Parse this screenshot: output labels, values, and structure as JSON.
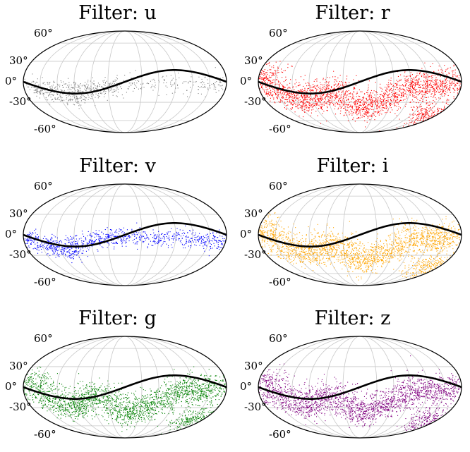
{
  "chart_data": [
    {
      "type": "scatter",
      "projection": "mollweide",
      "title": "Filter: u",
      "filter": "u",
      "color": "#808080",
      "density": "sparse",
      "ytick_labels": [
        "60°",
        "30°",
        "0°",
        "-30°",
        "-60°"
      ],
      "grid": true,
      "points": [
        [
          -170,
          -5
        ],
        [
          -160,
          -12
        ],
        [
          -150,
          -8
        ],
        [
          -140,
          -18
        ],
        [
          -130,
          -10
        ],
        [
          -120,
          -22
        ],
        [
          -110,
          -15
        ],
        [
          -100,
          -5
        ],
        [
          -95,
          -25
        ],
        [
          -90,
          -12
        ],
        [
          -80,
          -20
        ],
        [
          -70,
          -8
        ],
        [
          -60,
          -15
        ],
        [
          -50,
          -5
        ],
        [
          -40,
          -10
        ],
        [
          -30,
          -3
        ],
        [
          -20,
          -8
        ],
        [
          10,
          -2
        ],
        [
          40,
          -3
        ],
        [
          80,
          -2
        ],
        [
          120,
          -1
        ],
        [
          150,
          -3
        ],
        [
          170,
          -2
        ]
      ],
      "curve": {
        "name": "",
        "color": "#000000",
        "points": [
          [
            -180,
            0
          ],
          [
            -135,
            -12
          ],
          [
            -90,
            -17
          ],
          [
            -45,
            -11
          ],
          [
            0,
            0
          ],
          [
            45,
            11
          ],
          [
            90,
            17
          ],
          [
            135,
            12
          ],
          [
            180,
            0
          ]
        ]
      }
    },
    {
      "type": "scatter",
      "projection": "mollweide",
      "title": "Filter: r",
      "filter": "r",
      "color": "#ff0000",
      "density": "dense",
      "ytick_labels": [
        "60°",
        "30°",
        "0°",
        "-30°",
        "-60°"
      ],
      "grid": true,
      "points": [
        [
          -170,
          0
        ],
        [
          -150,
          -10
        ],
        [
          -130,
          -20
        ],
        [
          -110,
          -30
        ],
        [
          -90,
          -25
        ],
        [
          -70,
          -15
        ],
        [
          -50,
          -10
        ],
        [
          -30,
          -20
        ],
        [
          -10,
          -35
        ],
        [
          10,
          -40
        ],
        [
          30,
          -30
        ],
        [
          50,
          -25
        ],
        [
          70,
          -15
        ],
        [
          90,
          -5
        ],
        [
          110,
          0
        ],
        [
          130,
          -10
        ],
        [
          150,
          -5
        ],
        [
          170,
          5
        ],
        [
          -170,
          10
        ],
        [
          170,
          -50
        ],
        [
          140,
          -45
        ]
      ],
      "curve": {
        "name": "",
        "color": "#000000",
        "points": [
          [
            -180,
            0
          ],
          [
            -135,
            -12
          ],
          [
            -90,
            -17
          ],
          [
            -45,
            -11
          ],
          [
            0,
            0
          ],
          [
            45,
            11
          ],
          [
            90,
            17
          ],
          [
            135,
            12
          ],
          [
            180,
            0
          ]
        ]
      }
    },
    {
      "type": "scatter",
      "projection": "mollweide",
      "title": "Filter: v",
      "filter": "v",
      "color": "#0000ff",
      "density": "medium",
      "ytick_labels": [
        "60°",
        "30°",
        "0°",
        "-30°",
        "-60°"
      ],
      "grid": true,
      "points": [
        [
          -170,
          -3
        ],
        [
          -155,
          -10
        ],
        [
          -140,
          -15
        ],
        [
          -125,
          -20
        ],
        [
          -110,
          -25
        ],
        [
          -95,
          -18
        ],
        [
          -80,
          -12
        ],
        [
          -60,
          -8
        ],
        [
          -40,
          -5
        ],
        [
          -20,
          -3
        ],
        [
          0,
          -2
        ],
        [
          30,
          -2
        ],
        [
          60,
          -5
        ],
        [
          90,
          -3
        ],
        [
          120,
          -8
        ],
        [
          150,
          -5
        ],
        [
          170,
          -10
        ]
      ],
      "curve": {
        "name": "",
        "color": "#000000",
        "points": [
          [
            -180,
            0
          ],
          [
            -135,
            -12
          ],
          [
            -90,
            -17
          ],
          [
            -45,
            -11
          ],
          [
            0,
            0
          ],
          [
            45,
            11
          ],
          [
            90,
            17
          ],
          [
            135,
            12
          ],
          [
            180,
            0
          ]
        ]
      }
    },
    {
      "type": "scatter",
      "projection": "mollweide",
      "title": "Filter: i",
      "filter": "i",
      "color": "#ffa500",
      "density": "dense",
      "ytick_labels": [
        "60°",
        "30°",
        "0°",
        "-30°",
        "-60°"
      ],
      "grid": true,
      "points": [
        [
          -170,
          0
        ],
        [
          -150,
          -10
        ],
        [
          -130,
          -20
        ],
        [
          -110,
          -30
        ],
        [
          -90,
          -25
        ],
        [
          -70,
          -15
        ],
        [
          -50,
          -10
        ],
        [
          -30,
          -20
        ],
        [
          -10,
          -35
        ],
        [
          10,
          -40
        ],
        [
          30,
          -30
        ],
        [
          50,
          -25
        ],
        [
          70,
          -15
        ],
        [
          90,
          -5
        ],
        [
          110,
          0
        ],
        [
          130,
          -10
        ],
        [
          150,
          -5
        ],
        [
          170,
          5
        ],
        [
          -170,
          10
        ],
        [
          170,
          -50
        ],
        [
          140,
          -45
        ]
      ],
      "curve": {
        "name": "",
        "color": "#000000",
        "points": [
          [
            -180,
            0
          ],
          [
            -135,
            -12
          ],
          [
            -90,
            -17
          ],
          [
            -45,
            -11
          ],
          [
            0,
            0
          ],
          [
            45,
            11
          ],
          [
            90,
            17
          ],
          [
            135,
            12
          ],
          [
            180,
            0
          ]
        ]
      }
    },
    {
      "type": "scatter",
      "projection": "mollweide",
      "title": "Filter: g",
      "filter": "g",
      "color": "#008000",
      "density": "dense",
      "ytick_labels": [
        "60°",
        "30°",
        "0°",
        "-30°",
        "-60°"
      ],
      "grid": true,
      "points": [
        [
          -170,
          0
        ],
        [
          -150,
          -10
        ],
        [
          -130,
          -20
        ],
        [
          -110,
          -30
        ],
        [
          -90,
          -25
        ],
        [
          -70,
          -15
        ],
        [
          -50,
          -10
        ],
        [
          -30,
          -20
        ],
        [
          -10,
          -35
        ],
        [
          10,
          -40
        ],
        [
          30,
          -30
        ],
        [
          50,
          -25
        ],
        [
          70,
          -15
        ],
        [
          90,
          -5
        ],
        [
          110,
          0
        ],
        [
          130,
          -10
        ],
        [
          150,
          -5
        ],
        [
          170,
          5
        ],
        [
          -170,
          10
        ],
        [
          170,
          -50
        ],
        [
          140,
          -45
        ]
      ],
      "curve": {
        "name": "",
        "color": "#000000",
        "points": [
          [
            -180,
            0
          ],
          [
            -135,
            -12
          ],
          [
            -90,
            -17
          ],
          [
            -45,
            -11
          ],
          [
            0,
            0
          ],
          [
            45,
            11
          ],
          [
            90,
            17
          ],
          [
            135,
            12
          ],
          [
            180,
            0
          ]
        ]
      }
    },
    {
      "type": "scatter",
      "projection": "mollweide",
      "title": "Filter: z",
      "filter": "z",
      "color": "#800080",
      "density": "dense",
      "ytick_labels": [
        "60°",
        "30°",
        "0°",
        "-30°",
        "-60°"
      ],
      "grid": true,
      "points": [
        [
          -170,
          0
        ],
        [
          -150,
          -10
        ],
        [
          -130,
          -20
        ],
        [
          -110,
          -30
        ],
        [
          -90,
          -25
        ],
        [
          -70,
          -15
        ],
        [
          -50,
          -10
        ],
        [
          -30,
          -20
        ],
        [
          -10,
          -35
        ],
        [
          10,
          -40
        ],
        [
          30,
          -30
        ],
        [
          50,
          -25
        ],
        [
          70,
          -15
        ],
        [
          90,
          -5
        ],
        [
          110,
          0
        ],
        [
          130,
          -10
        ],
        [
          150,
          -5
        ],
        [
          170,
          5
        ],
        [
          -170,
          10
        ],
        [
          170,
          -50
        ],
        [
          140,
          -45
        ]
      ],
      "curve": {
        "name": "",
        "color": "#000000",
        "points": [
          [
            -180,
            0
          ],
          [
            -135,
            -12
          ],
          [
            -90,
            -17
          ],
          [
            -45,
            -11
          ],
          [
            0,
            0
          ],
          [
            45,
            11
          ],
          [
            90,
            17
          ],
          [
            135,
            12
          ],
          [
            180,
            0
          ]
        ]
      }
    }
  ]
}
